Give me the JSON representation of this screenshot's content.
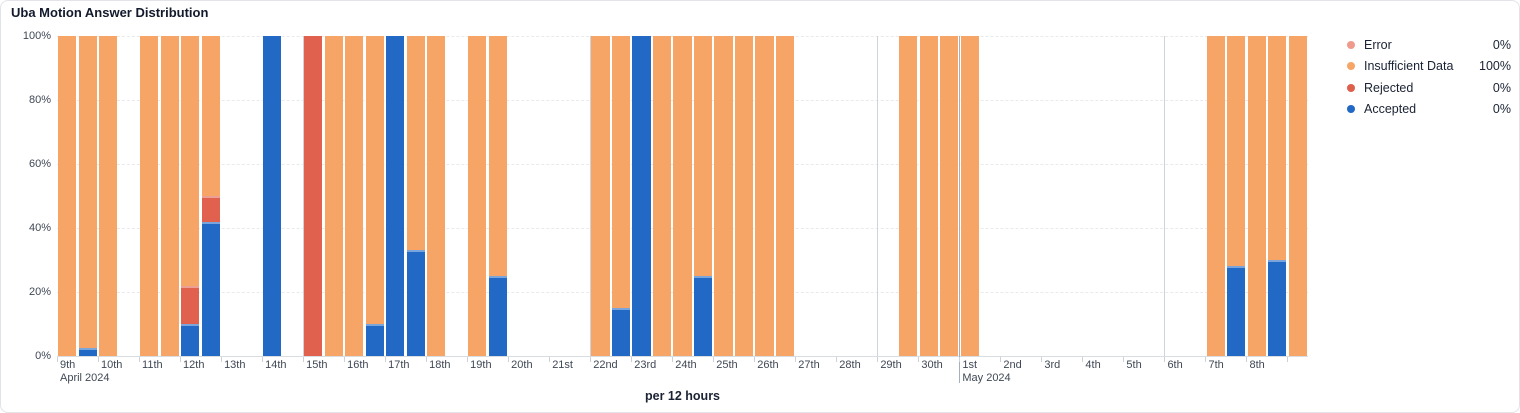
{
  "card": {
    "title": "Uba Motion Answer Distribution",
    "footer": "per 12 hours"
  },
  "legend": {
    "items": [
      {
        "label": "Error",
        "value": "0%",
        "color": "#EE9B8B"
      },
      {
        "label": "Insufficient Data",
        "value": "100%",
        "color": "#F7A566"
      },
      {
        "label": "Rejected",
        "value": "0%",
        "color": "#DE604B"
      },
      {
        "label": "Accepted",
        "value": "0%",
        "color": "#2268C5"
      }
    ]
  },
  "chart_data": {
    "type": "bar",
    "stacked": true,
    "title": "Uba Motion Answer Distribution",
    "xlabel": "per 12 hours",
    "unit": "percent",
    "ylim": [
      0,
      100
    ],
    "grid": "horizontal-dashed",
    "legend_position": "right",
    "y_ticks": [
      {
        "v": 0,
        "label": "0%"
      },
      {
        "v": 20,
        "label": "20%"
      },
      {
        "v": 40,
        "label": "40%"
      },
      {
        "v": 60,
        "label": "60%"
      },
      {
        "v": 80,
        "label": "80%"
      },
      {
        "v": 100,
        "label": "100%"
      }
    ],
    "stack_order_bottom_to_top": [
      "accepted",
      "rejected",
      "insufficient",
      "error"
    ],
    "series_colors": {
      "accepted": "#2268C5",
      "rejected": "#E0614D",
      "insufficient": "#F7A567",
      "error": "#EE9B8B"
    },
    "x_axis": {
      "day_labels": [
        "9th",
        "10th",
        "11th",
        "12th",
        "13th",
        "14th",
        "15th",
        "16th",
        "17th",
        "18th",
        "19th",
        "20th",
        "21st",
        "22nd",
        "23rd",
        "24th",
        "25th",
        "26th",
        "27th",
        "28th",
        "29th",
        "30th",
        "1st",
        "2nd",
        "3rd",
        "4th",
        "5th",
        "6th",
        "7th",
        "8th"
      ],
      "month_sublabels": [
        {
          "day_index": 0,
          "label": "April 2024"
        },
        {
          "day_index": 22,
          "label": "May 2024"
        }
      ],
      "week_gridline_day_indices": [
        6,
        13,
        20,
        27
      ],
      "month_gridline_day_indices": [
        22
      ]
    },
    "slots": [
      {
        "time": "Apr 9 AM",
        "accepted": 0,
        "rejected": 0,
        "insufficient": 100,
        "error": 0
      },
      {
        "time": "Apr 9 PM",
        "accepted": 2.5,
        "rejected": 0,
        "insufficient": 97.5,
        "error": 0
      },
      {
        "time": "Apr 10 AM",
        "accepted": 0,
        "rejected": 0,
        "insufficient": 100,
        "error": 0
      },
      {
        "time": "Apr 10 PM",
        "no_data": true
      },
      {
        "time": "Apr 11 AM",
        "accepted": 0,
        "rejected": 0,
        "insufficient": 100,
        "error": 0
      },
      {
        "time": "Apr 11 PM",
        "accepted": 0,
        "rejected": 0,
        "insufficient": 100,
        "error": 0
      },
      {
        "time": "Apr 12 AM",
        "accepted": 10,
        "rejected": 12,
        "insufficient": 78,
        "error": 0
      },
      {
        "time": "Apr 12 PM",
        "accepted": 42,
        "rejected": 8,
        "insufficient": 50,
        "error": 0
      },
      {
        "time": "Apr 13 AM",
        "no_data": true
      },
      {
        "time": "Apr 13 PM",
        "no_data": true
      },
      {
        "time": "Apr 14 AM",
        "accepted": 100,
        "rejected": 0,
        "insufficient": 0,
        "error": 0
      },
      {
        "time": "Apr 14 PM",
        "no_data": true
      },
      {
        "time": "Apr 15 AM",
        "accepted": 0,
        "rejected": 100,
        "insufficient": 0,
        "error": 0
      },
      {
        "time": "Apr 15 PM",
        "accepted": 0,
        "rejected": 0,
        "insufficient": 100,
        "error": 0
      },
      {
        "time": "Apr 16 AM",
        "accepted": 0,
        "rejected": 0,
        "insufficient": 100,
        "error": 0
      },
      {
        "time": "Apr 16 PM",
        "accepted": 10,
        "rejected": 0,
        "insufficient": 90,
        "error": 0
      },
      {
        "time": "Apr 17 AM",
        "accepted": 100,
        "rejected": 0,
        "insufficient": 0,
        "error": 0
      },
      {
        "time": "Apr 17 PM",
        "accepted": 33,
        "rejected": 0,
        "insufficient": 67,
        "error": 0
      },
      {
        "time": "Apr 18 AM",
        "accepted": 0,
        "rejected": 0,
        "insufficient": 100,
        "error": 0
      },
      {
        "time": "Apr 18 PM",
        "no_data": true
      },
      {
        "time": "Apr 19 AM",
        "accepted": 0,
        "rejected": 0,
        "insufficient": 100,
        "error": 0
      },
      {
        "time": "Apr 19 PM",
        "accepted": 25,
        "rejected": 0,
        "insufficient": 75,
        "error": 0
      },
      {
        "time": "Apr 20 AM",
        "no_data": true
      },
      {
        "time": "Apr 20 PM",
        "no_data": true
      },
      {
        "time": "Apr 21 AM",
        "no_data": true
      },
      {
        "time": "Apr 21 PM",
        "no_data": true
      },
      {
        "time": "Apr 22 AM",
        "accepted": 0,
        "rejected": 0,
        "insufficient": 100,
        "error": 0
      },
      {
        "time": "Apr 22 PM",
        "accepted": 15,
        "rejected": 0,
        "insufficient": 85,
        "error": 0
      },
      {
        "time": "Apr 23 AM",
        "accepted": 100,
        "rejected": 0,
        "insufficient": 0,
        "error": 0
      },
      {
        "time": "Apr 23 PM",
        "accepted": 0,
        "rejected": 0,
        "insufficient": 100,
        "error": 0
      },
      {
        "time": "Apr 24 AM",
        "accepted": 0,
        "rejected": 0,
        "insufficient": 100,
        "error": 0
      },
      {
        "time": "Apr 24 PM",
        "accepted": 25,
        "rejected": 0,
        "insufficient": 75,
        "error": 0
      },
      {
        "time": "Apr 25 AM",
        "accepted": 0,
        "rejected": 0,
        "insufficient": 100,
        "error": 0
      },
      {
        "time": "Apr 25 PM",
        "accepted": 0,
        "rejected": 0,
        "insufficient": 100,
        "error": 0
      },
      {
        "time": "Apr 26 AM",
        "accepted": 0,
        "rejected": 0,
        "insufficient": 100,
        "error": 0
      },
      {
        "time": "Apr 26 PM",
        "accepted": 0,
        "rejected": 0,
        "insufficient": 100,
        "error": 0
      },
      {
        "time": "Apr 27 AM",
        "no_data": true
      },
      {
        "time": "Apr 27 PM",
        "no_data": true
      },
      {
        "time": "Apr 28 AM",
        "no_data": true
      },
      {
        "time": "Apr 28 PM",
        "no_data": true
      },
      {
        "time": "Apr 29 AM",
        "no_data": true
      },
      {
        "time": "Apr 29 PM",
        "accepted": 0,
        "rejected": 0,
        "insufficient": 100,
        "error": 0
      },
      {
        "time": "Apr 30 AM",
        "accepted": 0,
        "rejected": 0,
        "insufficient": 100,
        "error": 0
      },
      {
        "time": "Apr 30 PM",
        "accepted": 0,
        "rejected": 0,
        "insufficient": 100,
        "error": 0
      },
      {
        "time": "May 1 AM",
        "accepted": 0,
        "rejected": 0,
        "insufficient": 100,
        "error": 0
      },
      {
        "time": "May 1 PM",
        "no_data": true
      },
      {
        "time": "May 2 AM",
        "no_data": true
      },
      {
        "time": "May 2 PM",
        "no_data": true
      },
      {
        "time": "May 3 AM",
        "no_data": true
      },
      {
        "time": "May 3 PM",
        "no_data": true
      },
      {
        "time": "May 4 AM",
        "no_data": true
      },
      {
        "time": "May 4 PM",
        "no_data": true
      },
      {
        "time": "May 5 AM",
        "no_data": true
      },
      {
        "time": "May 5 PM",
        "no_data": true
      },
      {
        "time": "May 6 AM",
        "no_data": true
      },
      {
        "time": "May 6 PM",
        "no_data": true
      },
      {
        "time": "May 7 AM",
        "accepted": 0,
        "rejected": 0,
        "insufficient": 100,
        "error": 0
      },
      {
        "time": "May 7 PM",
        "accepted": 28,
        "rejected": 0,
        "insufficient": 72,
        "error": 0
      },
      {
        "time": "May 8 AM",
        "accepted": 0,
        "rejected": 0,
        "insufficient": 100,
        "error": 0
      },
      {
        "time": "May 8 PM",
        "accepted": 30,
        "rejected": 0,
        "insufficient": 70,
        "error": 0
      },
      {
        "time": "May 9 AM",
        "accepted": 0,
        "rejected": 0,
        "insufficient": 100,
        "error": 0
      }
    ]
  }
}
